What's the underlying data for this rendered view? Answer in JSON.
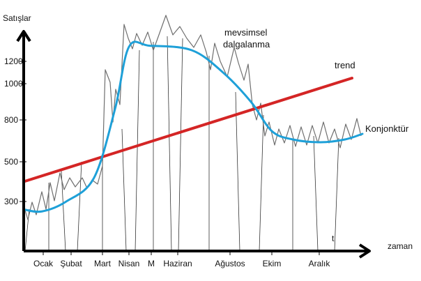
{
  "chart_data": {
    "type": "line",
    "ylabel": "Satışlar",
    "xlabel": "zaman",
    "y_ticks": [
      "1200",
      "1000",
      "800",
      "500",
      "300"
    ],
    "x_ticks": [
      "Ocak",
      "Şubat",
      "Mart",
      "Nisan",
      "M",
      "Haziran",
      "Ağustos",
      "Ekim",
      "Aralık"
    ],
    "t_marker": "t",
    "series": [
      {
        "name": "trend",
        "label": "trend",
        "color": "#d42525",
        "start": 400,
        "end": 1050
      },
      {
        "name": "Konjonktür",
        "label": "Konjonktür",
        "color": "#1ea0d8",
        "values": [
          260,
          250,
          300,
          420,
          860,
          1330,
          1340,
          1300,
          1100,
          900,
          720,
          660,
          640,
          660,
          700
        ]
      },
      {
        "name": "mevsimsel dalgalanma",
        "label_lines": [
          "mevsimsel",
          "dalgalanma"
        ],
        "color": "#777777"
      }
    ]
  }
}
